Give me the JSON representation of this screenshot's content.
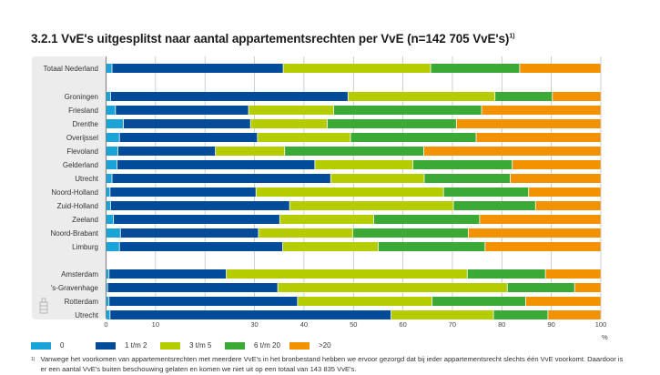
{
  "chart_data": {
    "type": "bar",
    "orientation": "horizontal",
    "stacked": true,
    "title": "3.2.1  VvE's uitgesplitst naar aantal appartementsrechten per VvE (n=142 705 VvE's)",
    "title_footnote_mark": "1)",
    "xlabel": "%",
    "xlim": [
      0,
      100
    ],
    "grid": "vertical",
    "x_tick_labels": [
      "0",
      "10",
      "",
      "30",
      "40",
      "50",
      "60",
      "70",
      "80",
      "90",
      "100"
    ],
    "legend_position": "bottom",
    "categories": [
      "Totaal Nederland",
      "Groningen",
      "Friesland",
      "Drenthe",
      "Overijssel",
      "Flevoland",
      "Gelderland",
      "Utrecht",
      "Noord-Holland",
      "Zuid-Holland",
      "Zeeland",
      "Noord-Brabant",
      "Limburg",
      "Amsterdam",
      "'s-Gravenhage",
      "Rotterdam",
      "Utrecht"
    ],
    "series": [
      {
        "name": "0",
        "color": "#1aa3d6",
        "values": [
          1.2,
          0.9,
          1.9,
          3.5,
          2.7,
          2.4,
          2.2,
          1.2,
          0.8,
          0.9,
          1.5,
          2.9,
          2.7,
          0.6,
          0.3,
          0.6,
          0.8
        ]
      },
      {
        "name": "1 t/m 2",
        "color": "#004b9a",
        "values": [
          34.6,
          48.0,
          26.9,
          25.7,
          27.9,
          19.7,
          40.0,
          44.2,
          29.5,
          36.2,
          33.6,
          27.9,
          33.0,
          23.7,
          34.4,
          38.1,
          56.8
        ]
      },
      {
        "name": "3 t/m 5",
        "color": "#b5cc00",
        "values": [
          29.8,
          29.7,
          17.2,
          15.5,
          18.8,
          14.0,
          19.8,
          18.9,
          37.9,
          33.1,
          19.0,
          19.1,
          19.3,
          48.7,
          46.4,
          27.2,
          20.7
        ]
      },
      {
        "name": "6 t/m 20",
        "color": "#3aa935",
        "values": [
          18.0,
          11.6,
          29.9,
          26.1,
          25.4,
          28.1,
          20.1,
          17.4,
          17.2,
          16.6,
          21.4,
          23.3,
          21.6,
          15.8,
          13.6,
          18.9,
          11.0
        ]
      },
      {
        "name": ">20",
        "color": "#f39200",
        "values": [
          16.4,
          9.8,
          24.1,
          29.2,
          25.2,
          35.8,
          17.9,
          18.3,
          14.6,
          13.2,
          24.5,
          26.8,
          23.4,
          11.2,
          5.3,
          15.2,
          10.7
        ]
      }
    ]
  },
  "footnote": {
    "mark": "1)",
    "text": "Vanwege het voorkomen van appartementsrechten met meerdere VvE's in het bronbestand hebben we ervoor gezorgd dat bij ieder appartementsrecht slechts één VvE voorkomt. Daardoor is er een aantal VvE's buiten beschouwing gelaten en komen we niet uit op een totaal van 143 835 VvE's."
  }
}
